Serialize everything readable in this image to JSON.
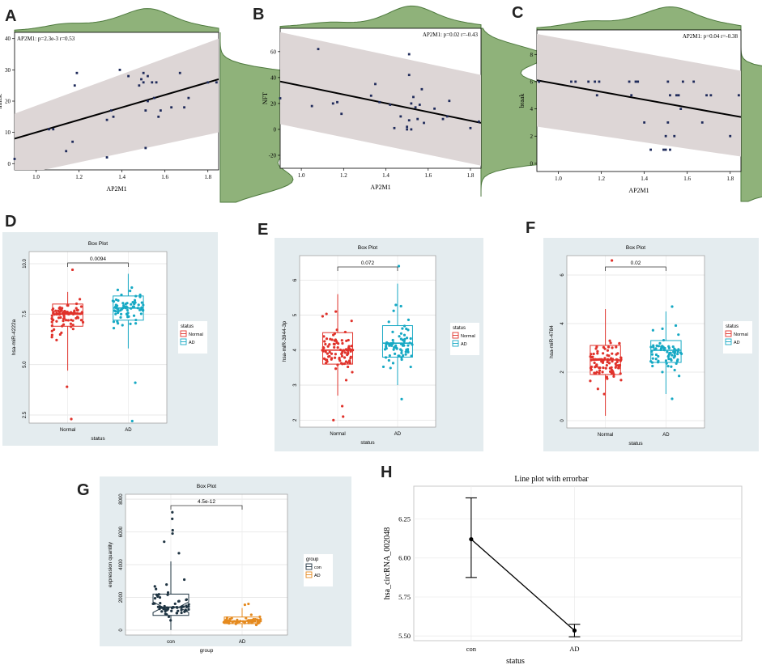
{
  "colors": {
    "band": "#ddd6d6",
    "density": "#8fb27a",
    "density_stroke": "#4e7a3e",
    "point": "#1e2a5a",
    "normal": "#e0322b",
    "ad": "#17a9c4",
    "con": "#1f3442",
    "ad_orange": "#e58a1f",
    "boxbg": "#e4ecef",
    "line": "#000000"
  },
  "chart_data": [
    {
      "id": "A",
      "panel_label": "A",
      "type": "scatter",
      "xlabel": "AP2M1",
      "ylabel": "mmse",
      "annotation": "AP2M1: p=2.3e-3 r=0.53",
      "xlim": [
        0.9,
        1.85
      ],
      "ylim": [
        -2,
        42
      ],
      "xticks": [
        "1.0",
        "1.2",
        "1.4",
        "1.6",
        "1.8"
      ],
      "xtick_values": [
        1.0,
        1.2,
        1.4,
        1.6,
        1.8
      ],
      "yticks": [
        "0",
        "10",
        "20",
        "30",
        "40"
      ],
      "ytick_values": [
        0,
        10,
        20,
        30,
        40
      ],
      "fit": {
        "x": [
          0.9,
          1.85
        ],
        "y": [
          8.0,
          27.0
        ],
        "band_low": [
          -4.0,
          10.0
        ],
        "band_high": [
          16.0,
          40.0
        ]
      },
      "x": [
        0.9,
        1.06,
        1.08,
        1.14,
        1.17,
        1.18,
        1.19,
        1.33,
        1.33,
        1.35,
        1.36,
        1.39,
        1.43,
        1.48,
        1.49,
        1.5,
        1.5,
        1.51,
        1.51,
        1.52,
        1.52,
        1.54,
        1.55,
        1.56,
        1.57,
        1.58,
        1.63,
        1.67,
        1.69,
        1.71,
        1.8,
        1.84
      ],
      "y": [
        1.5,
        11,
        11,
        4,
        7,
        25,
        29,
        14,
        2,
        17,
        15,
        30,
        28,
        25,
        27,
        29,
        26,
        5,
        17,
        28,
        20,
        26,
        21,
        26,
        15,
        17,
        18,
        29,
        18,
        21,
        26,
        26
      ]
    },
    {
      "id": "B",
      "panel_label": "B",
      "type": "scatter",
      "xlabel": "AP2M1",
      "ylabel": "NFT",
      "annotation": "AP2M1: p=0.02 r=-0.43",
      "xlim": [
        0.9,
        1.85
      ],
      "ylim": [
        -30,
        78
      ],
      "xticks": [
        "1.0",
        "1.2",
        "1.4",
        "1.6",
        "1.8"
      ],
      "xtick_values": [
        1.0,
        1.2,
        1.4,
        1.6,
        1.8
      ],
      "yticks": [
        "-20",
        "0",
        "20",
        "40",
        "60"
      ],
      "ytick_values": [
        -20,
        0,
        20,
        40,
        60
      ],
      "fit": {
        "x": [
          0.9,
          1.85
        ],
        "y": [
          37.0,
          5.0
        ],
        "band_low": [
          4.0,
          -28.0
        ],
        "band_high": [
          75.0,
          42.0
        ]
      },
      "x": [
        0.9,
        1.05,
        1.08,
        1.15,
        1.17,
        1.19,
        1.33,
        1.35,
        1.37,
        1.42,
        1.44,
        1.47,
        1.5,
        1.5,
        1.51,
        1.51,
        1.51,
        1.52,
        1.52,
        1.53,
        1.54,
        1.55,
        1.56,
        1.57,
        1.58,
        1.63,
        1.67,
        1.69,
        1.7,
        1.8,
        1.84
      ],
      "y": [
        24,
        18,
        62,
        20,
        21,
        12,
        26,
        35,
        21,
        19,
        1,
        10,
        2,
        0,
        58,
        42,
        7,
        20,
        0,
        25,
        17,
        8,
        19,
        31,
        5,
        16,
        8,
        10,
        22,
        1,
        6
      ]
    },
    {
      "id": "C",
      "panel_label": "C",
      "type": "scatter",
      "xlabel": "AP2M1",
      "ylabel": "braak",
      "annotation": "AP2M1: p=0.04 r=-0.38",
      "xlim": [
        0.9,
        1.85
      ],
      "ylim": [
        -0.6,
        9.8
      ],
      "xticks": [
        "1.0",
        "1.2",
        "1.4",
        "1.6",
        "1.8"
      ],
      "xtick_values": [
        1.0,
        1.2,
        1.4,
        1.6,
        1.8
      ],
      "yticks": [
        "0",
        "2",
        "4",
        "6",
        "8"
      ],
      "ytick_values": [
        0,
        2,
        4,
        6,
        8
      ],
      "fit": {
        "x": [
          0.9,
          1.85
        ],
        "y": [
          6.1,
          3.4
        ],
        "band_low": [
          2.7,
          0.5
        ],
        "band_high": [
          9.5,
          6.8
        ]
      },
      "x": [
        0.91,
        1.06,
        1.08,
        1.14,
        1.17,
        1.18,
        1.19,
        1.33,
        1.34,
        1.36,
        1.37,
        1.4,
        1.43,
        1.49,
        1.5,
        1.5,
        1.51,
        1.51,
        1.52,
        1.52,
        1.54,
        1.55,
        1.56,
        1.57,
        1.58,
        1.63,
        1.67,
        1.69,
        1.71,
        1.8,
        1.84
      ],
      "y": [
        6,
        6,
        6,
        6,
        6,
        5,
        6,
        6,
        5,
        6,
        6,
        3,
        1,
        1,
        2,
        1,
        6,
        3,
        1,
        5,
        2,
        5,
        5,
        4,
        6,
        6,
        3,
        5,
        5,
        2,
        5
      ]
    },
    {
      "id": "D",
      "panel_label": "D",
      "type": "box",
      "title": "Box Plot",
      "xlabel": "status",
      "ylabel": "hsa-miR-4222a",
      "categories": [
        "Normal",
        "AD"
      ],
      "legend_title": "status",
      "legend": [
        "Normal",
        "AD"
      ],
      "ylim": [
        2.1,
        10.6
      ],
      "yticks": [
        "2.5",
        "5.0",
        "7.5",
        "10.0"
      ],
      "ytick_values": [
        2.5,
        5.0,
        7.5,
        10.0
      ],
      "pvalue": "0.0094",
      "notched": false,
      "boxes": [
        {
          "name": "Normal",
          "whisker_low": 4.7,
          "q1": 6.9,
          "median": 7.5,
          "q3": 8.0,
          "whisker_high": 8.6,
          "points": 90,
          "outliers": [
            2.3,
            9.7,
            3.9
          ]
        },
        {
          "name": "AD",
          "whisker_low": 5.8,
          "q1": 7.2,
          "median": 7.8,
          "q3": 8.4,
          "whisker_high": 9.5,
          "points": 70,
          "outliers": [
            2.2,
            4.1
          ]
        }
      ]
    },
    {
      "id": "E",
      "panel_label": "E",
      "type": "box",
      "title": "Box Plot",
      "xlabel": "status",
      "ylabel": "hsa-miR-3944-3p",
      "categories": [
        "Normal",
        "AD"
      ],
      "legend_title": "status",
      "legend": [
        "Normal",
        "AD"
      ],
      "ylim": [
        1.8,
        6.7
      ],
      "yticks": [
        "2",
        "3",
        "4",
        "5",
        "6"
      ],
      "ytick_values": [
        2,
        3,
        4,
        5,
        6
      ],
      "pvalue": "0.072",
      "notched": false,
      "boxes": [
        {
          "name": "Normal",
          "whisker_low": 2.7,
          "q1": 3.6,
          "median": 4.0,
          "q3": 4.5,
          "whisker_high": 5.6,
          "points": 90,
          "outliers": [
            2.0,
            2.1,
            2.4
          ]
        },
        {
          "name": "AD",
          "whisker_low": 3.0,
          "q1": 3.8,
          "median": 4.2,
          "q3": 4.7,
          "whisker_high": 5.9,
          "points": 70,
          "outliers": [
            6.4,
            2.6
          ]
        }
      ]
    },
    {
      "id": "F",
      "panel_label": "F",
      "type": "box",
      "title": "Box Plot",
      "xlabel": "status",
      "ylabel": "hsa-miR-4784",
      "categories": [
        "Normal",
        "AD"
      ],
      "legend_title": "status",
      "legend": [
        "Normal",
        "AD"
      ],
      "ylim": [
        -0.3,
        6.8
      ],
      "yticks": [
        "0",
        "2",
        "4",
        "6"
      ],
      "ytick_values": [
        0,
        2,
        4,
        6
      ],
      "pvalue": "0.02",
      "notched": false,
      "boxes": [
        {
          "name": "Normal",
          "whisker_low": 0.2,
          "q1": 1.9,
          "median": 2.5,
          "q3": 3.1,
          "whisker_high": 4.6,
          "points": 100,
          "outliers": [
            6.6
          ]
        },
        {
          "name": "AD",
          "whisker_low": 1.1,
          "q1": 2.4,
          "median": 2.9,
          "q3": 3.3,
          "whisker_high": 4.5,
          "points": 70,
          "outliers": [
            0.9,
            4.7
          ]
        }
      ]
    },
    {
      "id": "G",
      "panel_label": "G",
      "type": "box",
      "title": "Box Plot",
      "xlabel": "group",
      "ylabel": "expression quantity",
      "categories": [
        "con",
        "AD"
      ],
      "legend_title": "group",
      "legend": [
        "con",
        "AD"
      ],
      "ylim": [
        -300,
        8300
      ],
      "yticks": [
        "0",
        "2000",
        "4000",
        "6000",
        "8000"
      ],
      "ytick_values": [
        0,
        2000,
        4000,
        6000,
        8000
      ],
      "pvalue": "4.5e-12",
      "notched": true,
      "boxes": [
        {
          "name": "con",
          "whisker_low": 0,
          "q1": 900,
          "median": 1400,
          "q3": 2200,
          "whisker_high": 4200,
          "points": 60,
          "outliers": [
            7200,
            6800,
            6100,
            5900,
            5400,
            4700
          ]
        },
        {
          "name": "AD",
          "whisker_low": 150,
          "q1": 400,
          "median": 550,
          "q3": 800,
          "whisker_high": 1350,
          "points": 55,
          "outliers": [
            1600,
            1550
          ]
        }
      ]
    },
    {
      "id": "H",
      "panel_label": "H",
      "type": "line",
      "title": "Line plot with errorbar",
      "xlabel": "status",
      "ylabel": "hsa_circRNA_002048",
      "categories": [
        "con",
        "AD"
      ],
      "values": [
        6.12,
        5.535
      ],
      "error_low": [
        5.875,
        5.495
      ],
      "error_high": [
        6.385,
        5.575
      ],
      "ylim": [
        5.47,
        6.46
      ],
      "yticks": [
        "5.50",
        "5.75",
        "6.00",
        "6.25"
      ],
      "ytick_values": [
        5.5,
        5.75,
        6.0,
        6.25
      ]
    }
  ]
}
